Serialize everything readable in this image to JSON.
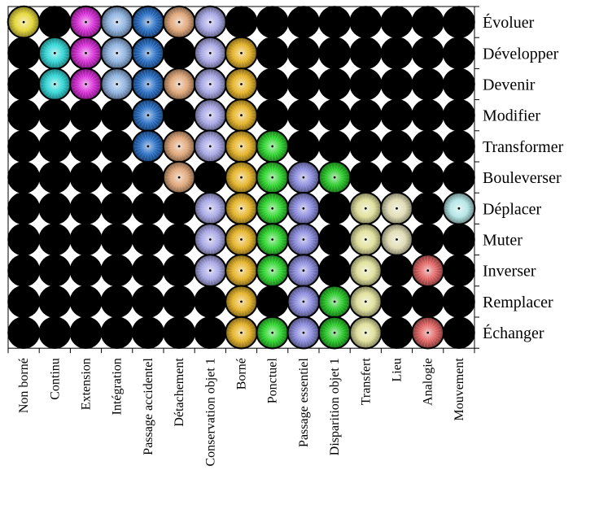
{
  "chart_data": {
    "type": "heatmap",
    "title": "",
    "xlabel": "",
    "ylabel": "",
    "grid": false,
    "rows": [
      "Évoluer",
      "Développer",
      "Devenir",
      "Modifier",
      "Transformer",
      "Bouleverser",
      "Déplacer",
      "Muter",
      "Inverser",
      "Remplacer",
      "Échanger"
    ],
    "columns": [
      "Non borné",
      "Continu",
      "Extension",
      "Intégration",
      "Passage accidentel",
      "Détachement",
      "Conservation objet 1",
      "Borné",
      "Ponctuel",
      "Passage essentiel",
      "Disparition objet 1",
      "Transfert",
      "Lieu",
      "Analogie",
      "Mouvement"
    ],
    "column_colors": [
      "#e6d83a",
      "#33d6d6",
      "#d62ed6",
      "#8fb3e0",
      "#2a6fc4",
      "#e0a77a",
      "#a8a8e6",
      "#e6b428",
      "#2ed62e",
      "#8c8cde",
      "#28c828",
      "#e0e09c",
      "#e0dcb4",
      "#e06464",
      "#b4e6e6"
    ],
    "empty_color": "#000000",
    "matrix": [
      [
        1,
        0,
        1,
        1,
        1,
        1,
        1,
        0,
        0,
        0,
        0,
        0,
        0,
        0,
        0
      ],
      [
        0,
        1,
        1,
        1,
        1,
        0,
        1,
        1,
        0,
        0,
        0,
        0,
        0,
        0,
        0
      ],
      [
        0,
        1,
        1,
        1,
        1,
        1,
        1,
        1,
        0,
        0,
        0,
        0,
        0,
        0,
        0
      ],
      [
        0,
        0,
        0,
        0,
        1,
        0,
        1,
        1,
        0,
        0,
        0,
        0,
        0,
        0,
        0
      ],
      [
        0,
        0,
        0,
        0,
        1,
        1,
        1,
        1,
        1,
        0,
        0,
        0,
        0,
        0,
        0
      ],
      [
        0,
        0,
        0,
        0,
        0,
        1,
        0,
        1,
        1,
        1,
        1,
        0,
        0,
        0,
        0
      ],
      [
        0,
        0,
        0,
        0,
        0,
        0,
        1,
        1,
        1,
        1,
        0,
        1,
        1,
        0,
        1
      ],
      [
        0,
        0,
        0,
        0,
        0,
        0,
        1,
        1,
        1,
        1,
        0,
        1,
        1,
        0,
        0
      ],
      [
        0,
        0,
        0,
        0,
        0,
        0,
        1,
        1,
        1,
        1,
        0,
        1,
        0,
        1,
        0
      ],
      [
        0,
        0,
        0,
        0,
        0,
        0,
        0,
        1,
        0,
        1,
        1,
        1,
        0,
        0,
        0
      ],
      [
        0,
        0,
        0,
        0,
        0,
        0,
        0,
        1,
        1,
        1,
        1,
        1,
        0,
        1,
        0
      ]
    ]
  }
}
